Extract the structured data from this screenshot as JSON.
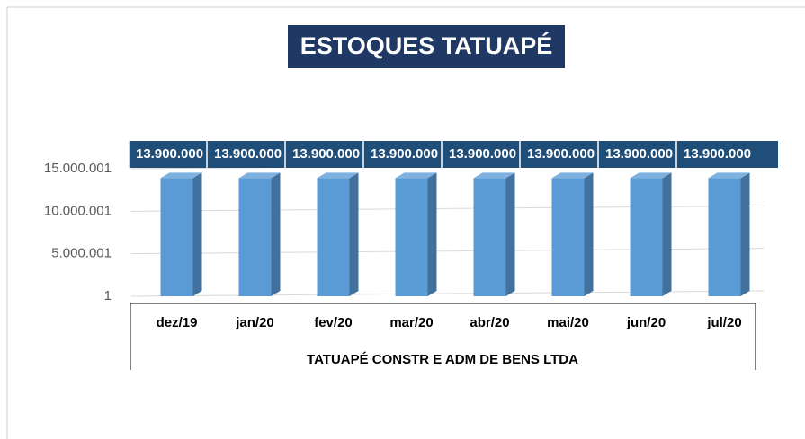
{
  "chart_data": {
    "type": "bar",
    "title": "ESTOQUES TATUAPÉ",
    "x_label": "TATUAPÉ CONSTR E ADM DE BENS LTDA",
    "categories": [
      "dez/19",
      "jan/20",
      "fev/20",
      "mar/20",
      "abr/20",
      "mai/20",
      "jun/20",
      "jul/20"
    ],
    "values": [
      13900000,
      13900000,
      13900000,
      13900000,
      13900000,
      13900000,
      13900000,
      13900000
    ],
    "value_labels": [
      "13.900.000",
      "13.900.000",
      "13.900.000",
      "13.900.000",
      "13.900.000",
      "13.900.000",
      "13.900.000",
      "13.900.000"
    ],
    "color": "#5b9bd5",
    "ylim": [
      1,
      15000001
    ],
    "yticks": [
      1,
      {
        "value": 5000001,
        "label": "5.000.001"
      },
      {
        "value": 10000001,
        "label": "10.000.001"
      },
      {
        "value": 15000001,
        "label": "15.000.001"
      }
    ],
    "grid": true
  }
}
